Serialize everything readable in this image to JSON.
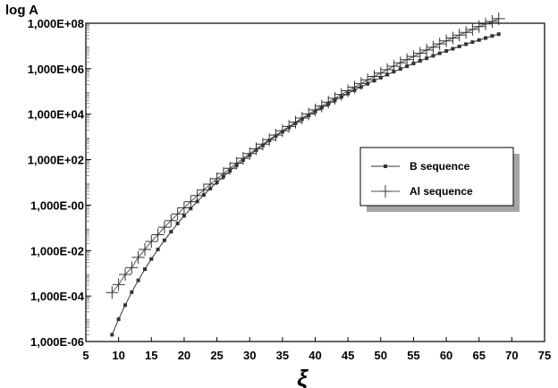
{
  "chart_data": {
    "type": "line",
    "title": "",
    "ylabel": "log A",
    "xlabel": "ξ",
    "xlim": [
      5,
      75
    ],
    "ylim_log10": [
      -6,
      8
    ],
    "y_scale": "log",
    "grid": false,
    "legend_position": "middle-right",
    "x_ticks": [
      "5",
      "10",
      "15",
      "20",
      "25",
      "30",
      "35",
      "40",
      "45",
      "50",
      "55",
      "60",
      "65",
      "70",
      "75"
    ],
    "y_ticks": [
      "1,000E-06",
      "1,000E-04",
      "1,000E-02",
      "1,000E-00",
      "1,000E+02",
      "1,000E+04",
      "1,000E+06",
      "1,000E+08"
    ],
    "series": [
      {
        "name": "B  sequence",
        "marker": "square",
        "color": "#333333",
        "x": [
          9,
          10,
          11,
          12,
          13,
          14,
          15,
          16,
          17,
          18,
          19,
          20,
          21,
          22,
          23,
          24,
          25,
          26,
          27,
          28,
          29,
          30,
          31,
          32,
          33,
          34,
          35,
          36,
          37,
          38,
          39,
          40,
          41,
          42,
          43,
          44,
          45,
          46,
          47,
          48,
          49,
          50,
          51,
          52,
          53,
          54,
          55,
          56,
          57,
          58,
          59,
          60,
          61,
          62,
          63,
          64,
          65,
          66,
          67,
          68
        ],
        "log10_y": [
          -5.7,
          -5.02,
          -4.4,
          -3.83,
          -3.31,
          -2.82,
          -2.37,
          -1.95,
          -1.55,
          -1.17,
          -0.81,
          -0.47,
          -0.15,
          0.16,
          0.45,
          0.73,
          1.0,
          1.26,
          1.51,
          1.75,
          1.98,
          2.2,
          2.42,
          2.63,
          2.84,
          3.04,
          3.23,
          3.42,
          3.6,
          3.78,
          3.95,
          4.12,
          4.29,
          4.45,
          4.61,
          4.76,
          4.91,
          5.06,
          5.2,
          5.34,
          5.48,
          5.61,
          5.74,
          5.87,
          5.99,
          6.11,
          6.23,
          6.35,
          6.46,
          6.57,
          6.68,
          6.78,
          6.88,
          6.98,
          7.08,
          7.17,
          7.26,
          7.35,
          7.44,
          7.52
        ]
      },
      {
        "name": "Al sequence",
        "marker": "plus",
        "color": "#555555",
        "x": [
          9,
          10,
          11,
          12,
          13,
          14,
          15,
          16,
          17,
          18,
          19,
          20,
          21,
          22,
          23,
          24,
          25,
          26,
          27,
          28,
          29,
          30,
          31,
          32,
          33,
          34,
          35,
          36,
          37,
          38,
          39,
          40,
          41,
          42,
          43,
          44,
          45,
          46,
          47,
          48,
          49,
          50,
          51,
          52,
          53,
          54,
          55,
          56,
          57,
          58,
          59,
          60,
          61,
          62,
          63,
          64,
          65,
          66,
          67,
          68
        ],
        "log10_y": [
          -3.85,
          -3.5,
          -3.05,
          -2.75,
          -2.3,
          -1.95,
          -1.6,
          -1.3,
          -0.97,
          -0.68,
          -0.39,
          -0.12,
          0.15,
          0.42,
          0.67,
          0.92,
          1.16,
          1.39,
          1.62,
          1.84,
          2.06,
          2.27,
          2.48,
          2.68,
          2.88,
          3.08,
          3.27,
          3.46,
          3.65,
          3.83,
          4.01,
          4.19,
          4.36,
          4.53,
          4.7,
          4.87,
          5.03,
          5.19,
          5.35,
          5.51,
          5.66,
          5.81,
          5.96,
          6.11,
          6.26,
          6.4,
          6.54,
          6.68,
          6.82,
          6.95,
          7.09,
          7.22,
          7.35,
          7.48,
          7.6,
          7.73,
          7.85,
          7.97,
          8.08,
          8.2
        ]
      }
    ]
  }
}
